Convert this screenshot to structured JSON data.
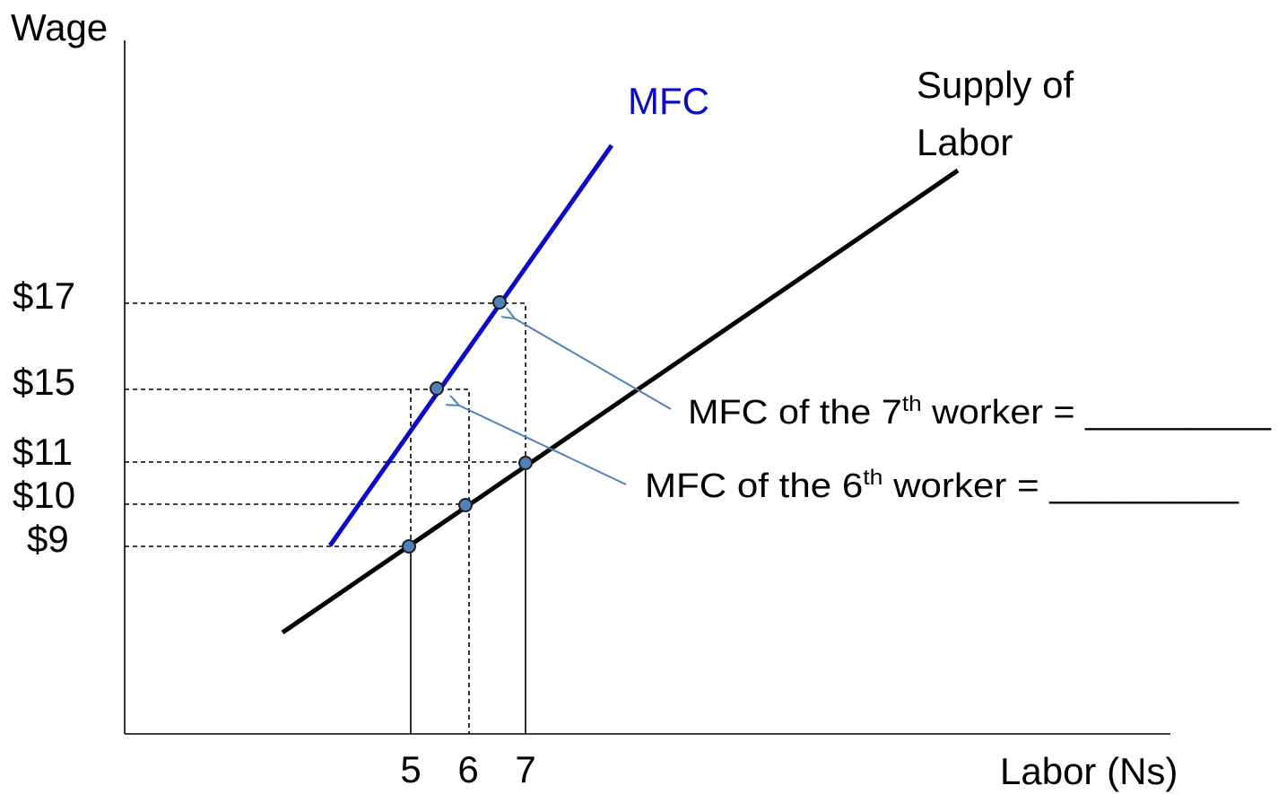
{
  "axes": {
    "y_label": "Wage",
    "x_label": "Labor (Ns)",
    "y_ticks": [
      "$17",
      "$15",
      "$11",
      "$10",
      "$9"
    ],
    "x_ticks": [
      "5",
      "6",
      "7"
    ]
  },
  "curves": {
    "mfc": "MFC",
    "supply": [
      "Supply of",
      "Labor"
    ]
  },
  "annotations": [
    {
      "before": "MFC of the 7",
      "sup": "th",
      "after": " worker = _________"
    },
    {
      "before": "MFC of the 6",
      "sup": "th",
      "after": " worker = _________"
    }
  ]
}
